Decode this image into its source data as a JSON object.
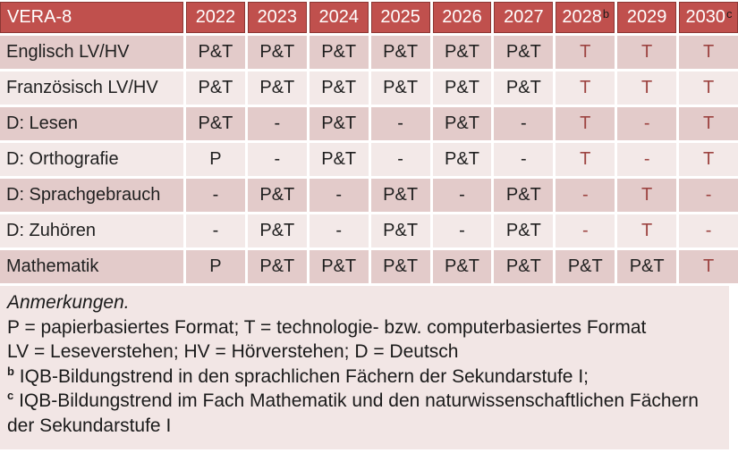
{
  "colors": {
    "header_bg": "#c0504d",
    "header_border": "#8c3734",
    "header_text": "#ffffff",
    "band_dark": "#e3cbca",
    "band_light": "#f3e9e8",
    "body_text": "#1f1f1f",
    "tech_red_text": "#9c4340",
    "notes_bg": "#f2e6e5"
  },
  "table": {
    "corner_label": "VERA-8",
    "years": [
      {
        "text": "2022",
        "sup": ""
      },
      {
        "text": "2023",
        "sup": ""
      },
      {
        "text": "2024",
        "sup": ""
      },
      {
        "text": "2025",
        "sup": ""
      },
      {
        "text": "2026",
        "sup": ""
      },
      {
        "text": "2027",
        "sup": ""
      },
      {
        "text": "2028",
        "sup": "b"
      },
      {
        "text": "2029",
        "sup": ""
      },
      {
        "text": "2030",
        "sup": "c"
      }
    ],
    "rows": [
      {
        "label": "Englisch LV/HV",
        "cells": [
          "P&T",
          "P&T",
          "P&T",
          "P&T",
          "P&T",
          "P&T",
          "T",
          "T",
          "T"
        ]
      },
      {
        "label": "Französisch LV/HV",
        "cells": [
          "P&T",
          "P&T",
          "P&T",
          "P&T",
          "P&T",
          "P&T",
          "T",
          "T",
          "T"
        ]
      },
      {
        "label": "D: Lesen",
        "cells": [
          "P&T",
          "-",
          "P&T",
          "-",
          "P&T",
          "-",
          "T",
          "-",
          "T"
        ]
      },
      {
        "label": "D: Orthografie",
        "cells": [
          "P",
          "-",
          "P&T",
          "-",
          "P&T",
          "-",
          "T",
          "-",
          "T"
        ]
      },
      {
        "label": "D: Sprachgebrauch",
        "cells": [
          "-",
          "P&T",
          "-",
          "P&T",
          "-",
          "P&T",
          "-",
          "T",
          "-"
        ]
      },
      {
        "label": "D: Zuhören",
        "cells": [
          "-",
          "P&T",
          "-",
          "P&T",
          "-",
          "P&T",
          "-",
          "T",
          "-"
        ]
      },
      {
        "label": "Mathematik",
        "cells": [
          "P",
          "P&T",
          "P&T",
          "P&T",
          "P&T",
          "P&T",
          "P&T",
          "P&T",
          "T"
        ]
      }
    ]
  },
  "notes": {
    "heading": "Anmerkungen.",
    "line_formats": "P = papierbasiertes Format; T = technologie- bzw. computerbasiertes Format",
    "line_abbrev": "LV = Leseverstehen; HV = Hörverstehen; D = Deutsch",
    "note_b_sup": "b",
    "note_b_text": "IQB-Bildungstrend in den sprachlichen Fächern der Sekundarstufe I;",
    "note_c_sup": "c",
    "note_c_text": "IQB-Bildungstrend im Fach Mathematik und den naturwissenschaftlichen Fächern der Sekundarstufe I"
  }
}
